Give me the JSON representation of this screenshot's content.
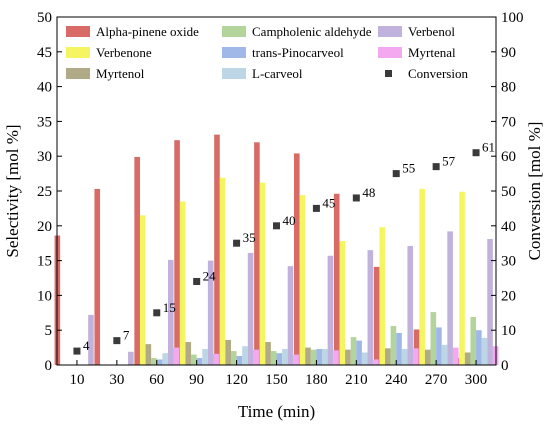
{
  "chart_data": {
    "type": "bar",
    "xlabel": "Time (min)",
    "ylabel": "Selectivity [mol %]",
    "y2label": "Conversion [mol %]",
    "ylim": [
      0,
      50
    ],
    "y2lim": [
      0,
      100
    ],
    "yticks": [
      "0",
      "5",
      "10",
      "15",
      "20",
      "25",
      "30",
      "35",
      "40",
      "45",
      "50"
    ],
    "y2ticks": [
      "0",
      "10",
      "20",
      "30",
      "40",
      "50",
      "60",
      "70",
      "80",
      "90",
      "100"
    ],
    "categories": [
      "10",
      "30",
      "60",
      "90",
      "120",
      "150",
      "180",
      "210",
      "240",
      "270",
      "300"
    ],
    "grid": false,
    "legend_position": "top",
    "series": [
      {
        "name": "Alpha-pinene oxide",
        "color": "#d96b66",
        "values": [
          18.6,
          25.3,
          29.9,
          32.3,
          33.1,
          32.0,
          30.4,
          24.6,
          14.1,
          5.1,
          1.0
        ]
      },
      {
        "name": "Verbenone",
        "color": "#f5f562",
        "values": [
          0,
          0,
          21.5,
          23.5,
          26.9,
          26.2,
          24.4,
          17.8,
          19.8,
          25.3,
          24.9
        ]
      },
      {
        "name": "Myrtenol",
        "color": "#b0ab86",
        "values": [
          0,
          0,
          3.0,
          3.3,
          3.6,
          3.3,
          2.5,
          2.2,
          2.4,
          2.2,
          1.8
        ]
      },
      {
        "name": "Campholenic aldehyde",
        "color": "#b3d49b",
        "values": [
          0,
          0,
          1.0,
          1.5,
          2.0,
          2.0,
          2.2,
          4.0,
          5.6,
          7.6,
          6.9
        ]
      },
      {
        "name": "trans-Pinocarveol",
        "color": "#9fb8e8",
        "values": [
          0,
          0,
          0.8,
          1.0,
          1.3,
          1.7,
          2.3,
          3.5,
          4.6,
          5.4,
          5.0
        ]
      },
      {
        "name": "L-carveol",
        "color": "#bcd6e6",
        "values": [
          0,
          0,
          1.7,
          2.3,
          2.7,
          2.3,
          2.3,
          1.8,
          2.3,
          2.9,
          3.9
        ]
      },
      {
        "name": "Verbenol",
        "color": "#c0b2dc",
        "values": [
          7.2,
          1.9,
          15.1,
          15.0,
          16.1,
          14.2,
          15.7,
          16.5,
          17.1,
          19.2,
          18.1
        ]
      },
      {
        "name": "Myrtenal",
        "color": "#f3a8ef",
        "values": [
          0,
          0,
          2.5,
          1.6,
          2.2,
          1.5,
          2.1,
          0.8,
          2.4,
          2.5,
          2.7
        ]
      }
    ],
    "conversion": {
      "name": "Conversion",
      "color": "#3a3a3a",
      "values": [
        4,
        7,
        15,
        24,
        35,
        40,
        45,
        48,
        55,
        57,
        61
      ],
      "labels": [
        "4",
        "7",
        "15",
        "24",
        "35",
        "40",
        "45",
        "48",
        "55",
        "57",
        "61"
      ]
    },
    "legend_order": [
      "Alpha-pinene oxide",
      "Campholenic aldehyde",
      "Verbenol",
      "Verbenone",
      "trans-Pinocarveol",
      "Myrtenal",
      "Myrtenol",
      "L-carveol",
      "Conversion"
    ]
  }
}
